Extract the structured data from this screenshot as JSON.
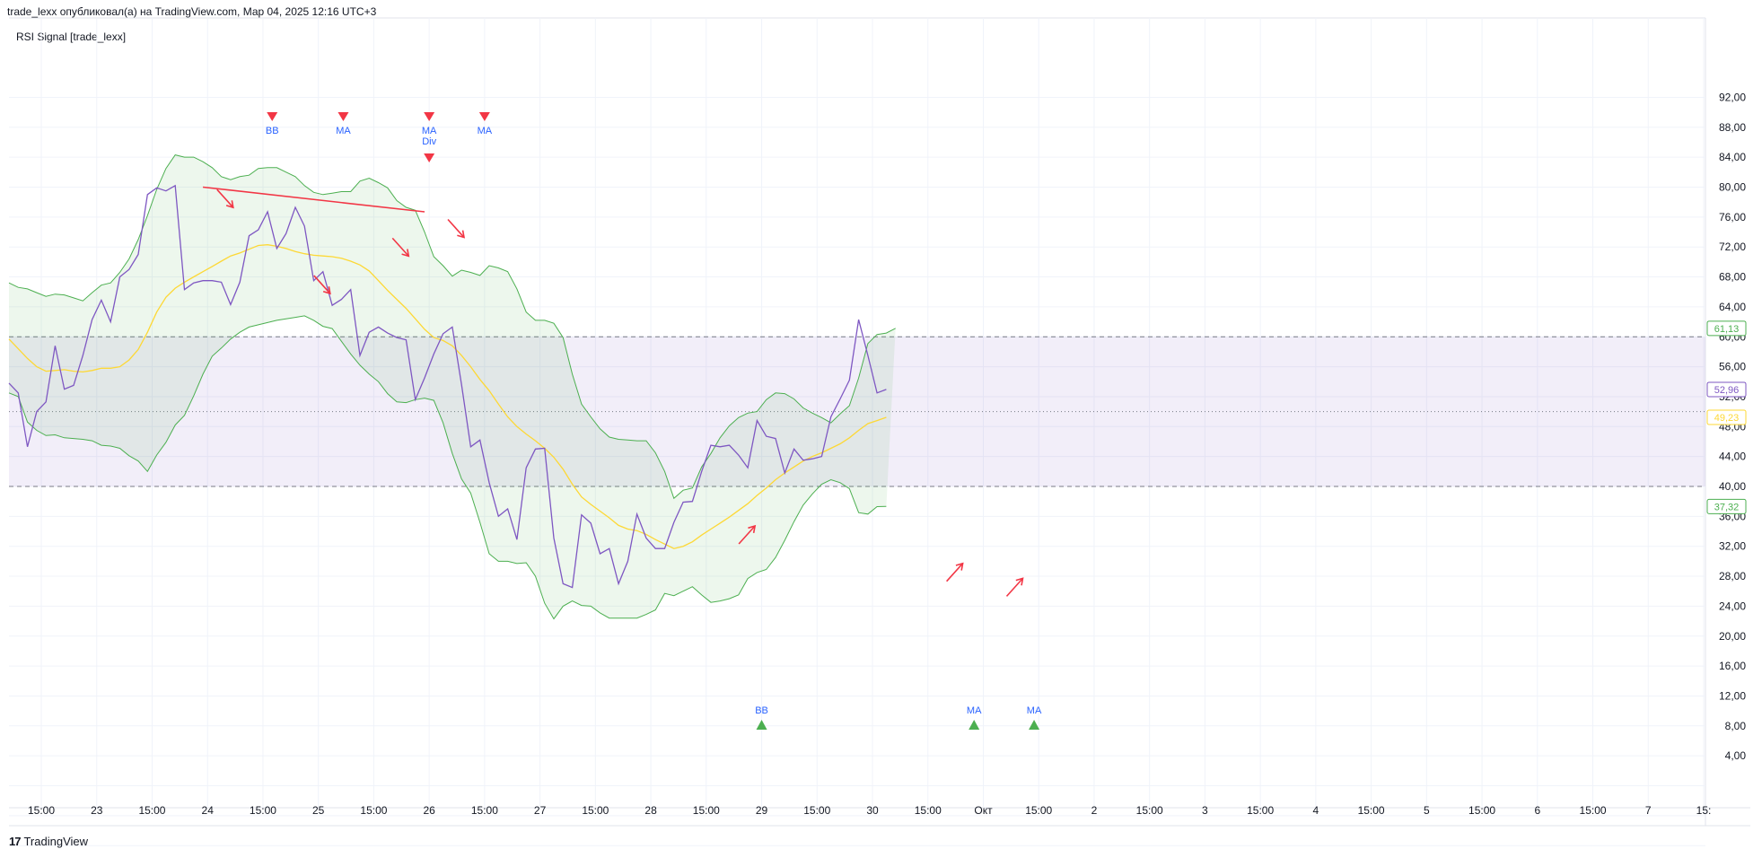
{
  "header": {
    "publish_line": "trade_lexx опубликовал(а) на TradingView.com, Мар 04, 2025 12:16 UTC+3",
    "indicator_title": "RSI Signal [trade_lexx]"
  },
  "footer": {
    "logo_mark": "17",
    "logo_text": "TradingView"
  },
  "colors": {
    "rsi": "#7e57c2",
    "ma": "#fdd835",
    "band": "#4caf50",
    "band_fill": "rgba(76,175,80,0.10)",
    "zone_fill": "rgba(126,87,194,0.10)",
    "sell_marker": "#f23645",
    "buy_marker": "#4caf50",
    "arrow": "#f23645",
    "signal_text": "#2962ff"
  },
  "chart_data": {
    "type": "line",
    "title": "RSI Signal [trade_lexx]",
    "ylim": [
      0,
      94
    ],
    "y_ticks": [
      "92,00",
      "88,00",
      "84,00",
      "80,00",
      "76,00",
      "72,00",
      "68,00",
      "64,00",
      "60,00",
      "56,00",
      "52,00",
      "48,00",
      "44,00",
      "40,00",
      "36,00",
      "32,00",
      "28,00",
      "24,00",
      "20,00",
      "16,00",
      "12,00",
      "8,00",
      "4,00"
    ],
    "y_tick_values": [
      92,
      88,
      84,
      80,
      76,
      72,
      68,
      64,
      60,
      56,
      52,
      48,
      44,
      40,
      36,
      32,
      28,
      24,
      20,
      16,
      12,
      8,
      4
    ],
    "x_tick_labels": [
      "15:00",
      "23",
      "15:00",
      "24",
      "15:00",
      "25",
      "15:00",
      "26",
      "15:00",
      "27",
      "15:00",
      "28",
      "15:00",
      "29",
      "15:00",
      "30",
      "15:00",
      "Окт",
      "15:00",
      "2",
      "15:00",
      "3",
      "15:00",
      "4",
      "15:00",
      "5",
      "15:00",
      "6",
      "15:00",
      "7",
      "15:"
    ],
    "x_tick_index": [
      3.5,
      9.5,
      15.5,
      21.5,
      27.5,
      33.5,
      39.5,
      45.5,
      51.5,
      57.5,
      63.5,
      69.5,
      75.5,
      81.5,
      87.5,
      93.5,
      99.5,
      105.5,
      111.5,
      117.5,
      123.5,
      129.5,
      135.5,
      141.5,
      147.5,
      153.5,
      159.5,
      165.5,
      171.5,
      177.5,
      183.5
    ],
    "x_range": [
      0,
      183.5
    ],
    "levels": {
      "upper": 60,
      "middle": 50,
      "lower": 40
    },
    "series": [
      {
        "name": "RSI",
        "values": [
          53.8,
          52.5,
          45.3,
          50.0,
          51.3,
          58.8,
          53.0,
          53.5,
          57.5,
          62.3,
          64.9,
          62.0,
          68.0,
          69.0,
          71.0,
          79.0,
          79.9,
          79.5,
          80.2,
          66.3,
          67.2,
          67.5,
          67.5,
          67.3,
          64.3,
          67.3,
          73.5,
          74.3,
          76.7,
          71.8,
          73.8,
          77.3,
          74.8,
          67.5,
          68.7,
          64.2,
          65.0,
          66.3,
          57.5,
          60.6,
          61.3,
          60.5,
          59.9,
          59.6,
          51.6,
          54.5,
          57.7,
          60.4,
          61.3,
          53.6,
          45.3,
          46.2,
          40.5,
          36.0,
          37.0,
          32.9,
          42.5,
          45.0,
          45.1,
          33.1,
          27.0,
          26.5,
          36.2,
          35.1,
          31.0,
          31.7,
          27.0,
          30.0,
          36.3,
          33.1,
          31.7,
          31.7,
          35.2,
          37.9,
          38.0,
          42.0,
          45.5,
          45.3,
          45.5,
          44.2,
          42.5,
          48.8,
          46.7,
          46.4,
          41.8,
          45.0,
          43.5,
          43.7,
          44.0,
          49.3,
          51.7,
          54.2,
          62.3,
          57.5,
          52.5,
          52.96
        ]
      },
      {
        "name": "MA",
        "values": [
          59.7,
          58.4,
          57.1,
          56.0,
          55.4,
          55.5,
          55.6,
          55.4,
          55.3,
          55.5,
          55.8,
          55.8,
          56.0,
          56.9,
          58.3,
          60.6,
          63.3,
          65.3,
          66.5,
          67.3,
          68.0,
          68.7,
          69.4,
          70.1,
          70.8,
          71.2,
          71.7,
          72.2,
          72.3,
          72.1,
          71.8,
          71.4,
          71.1,
          70.9,
          70.8,
          70.7,
          70.5,
          70.1,
          69.6,
          68.8,
          67.5,
          66.2,
          65.0,
          63.8,
          62.4,
          61.0,
          59.9,
          59.5,
          58.8,
          57.5,
          56.0,
          54.3,
          52.8,
          51.0,
          49.3,
          48.0,
          47.0,
          46.1,
          45.1,
          43.9,
          42.3,
          40.3,
          38.6,
          37.6,
          36.7,
          35.8,
          34.8,
          34.3,
          34.1,
          33.6,
          32.9,
          32.3,
          31.7,
          32.0,
          32.6,
          33.5,
          34.3,
          35.1,
          35.9,
          36.8,
          37.7,
          38.8,
          39.8,
          40.9,
          41.8,
          42.6,
          43.4,
          44.0,
          44.5,
          45.1,
          45.7,
          46.5,
          47.5,
          48.4,
          48.8,
          49.23
        ]
      },
      {
        "name": "Upper Band",
        "values": [
          67.2,
          66.6,
          66.4,
          65.9,
          65.4,
          65.7,
          65.6,
          65.2,
          64.8,
          65.9,
          66.9,
          67.2,
          68.6,
          70.4,
          73.0,
          76.2,
          79.7,
          82.5,
          84.3,
          84.0,
          84.0,
          83.4,
          82.6,
          81.4,
          81.0,
          81.4,
          81.6,
          82.5,
          82.6,
          82.6,
          82.0,
          81.4,
          80.2,
          79.3,
          79.0,
          79.2,
          79.4,
          79.4,
          80.8,
          81.2,
          80.6,
          79.9,
          78.2,
          77.3,
          76.9,
          74.0,
          70.7,
          69.5,
          68.1,
          68.9,
          68.6,
          68.2,
          69.5,
          69.2,
          68.7,
          66.4,
          63.3,
          62.2,
          62.2,
          61.8,
          59.9,
          55.0,
          51.0,
          49.3,
          47.7,
          46.6,
          46.3,
          46.2,
          46.1,
          46.1,
          44.5,
          42.0,
          38.4,
          39.5,
          39.8,
          42.6,
          44.4,
          46.5,
          48.1,
          49.2,
          49.8,
          50.0,
          51.6,
          52.5,
          52.4,
          51.7,
          50.5,
          49.8,
          49.2,
          48.5,
          49.7,
          50.8,
          54.5,
          59.1,
          60.3,
          60.5,
          61.13
        ]
      },
      {
        "name": "Lower Band",
        "values": [
          52.5,
          52.0,
          48.6,
          47.5,
          46.8,
          46.9,
          46.5,
          46.4,
          46.3,
          46.1,
          45.5,
          45.4,
          45.1,
          44.1,
          43.4,
          42.0,
          44.2,
          45.9,
          48.2,
          49.5,
          52.1,
          55.0,
          57.4,
          58.5,
          59.7,
          60.6,
          61.3,
          61.6,
          61.9,
          62.2,
          62.4,
          62.6,
          62.8,
          62.2,
          61.4,
          61.1,
          59.4,
          57.7,
          56.2,
          55.0,
          54.0,
          52.4,
          51.3,
          51.2,
          51.6,
          51.8,
          51.5,
          48.5,
          44.4,
          41.0,
          39.1,
          35.2,
          31.0,
          30.0,
          30.0,
          29.7,
          29.8,
          28.0,
          24.4,
          22.3,
          24.0,
          24.7,
          24.1,
          24.0,
          23.1,
          22.4,
          22.4,
          22.4,
          22.4,
          22.9,
          23.5,
          25.7,
          25.4,
          26.0,
          26.6,
          25.5,
          24.5,
          24.7,
          25.0,
          25.5,
          27.7,
          28.5,
          28.9,
          30.5,
          32.8,
          35.3,
          37.5,
          39.0,
          40.3,
          40.9,
          40.5,
          39.7,
          36.5,
          36.3,
          37.3,
          37.32
        ]
      }
    ],
    "last_values": {
      "upper_band": "61,13",
      "rsi": "52,96",
      "ma": "49,23",
      "lower_band": "37,32"
    },
    "sell_signals": [
      {
        "index": 28.5,
        "label": "BB"
      },
      {
        "index": 36.2,
        "label": "MA"
      },
      {
        "index": 45.5,
        "label": "MA"
      },
      {
        "index": 51.5,
        "label": "MA"
      }
    ],
    "divergence_signal": {
      "index": 45.5,
      "label": "Div"
    },
    "buy_signals": [
      {
        "index": 81.5,
        "label": "BB"
      },
      {
        "index": 104.5,
        "label": "MA"
      },
      {
        "index": 111.0,
        "label": "MA"
      }
    ],
    "divergence_line": {
      "x": [
        21,
        45
      ],
      "y": [
        80.0,
        76.7
      ]
    },
    "arrows": [
      {
        "dir": "down",
        "index": 23.5,
        "value": 78
      },
      {
        "index": 34.0,
        "value": 66.5,
        "dir": "down"
      },
      {
        "index": 42.5,
        "value": 71.5,
        "dir": "down"
      },
      {
        "index": 48.5,
        "value": 74.0,
        "dir": "down"
      },
      {
        "index": 80.0,
        "value": 34.0,
        "dir": "up"
      },
      {
        "index": 102.5,
        "value": 29.0,
        "dir": "up"
      },
      {
        "index": 109.0,
        "value": 27.0,
        "dir": "up"
      }
    ]
  }
}
